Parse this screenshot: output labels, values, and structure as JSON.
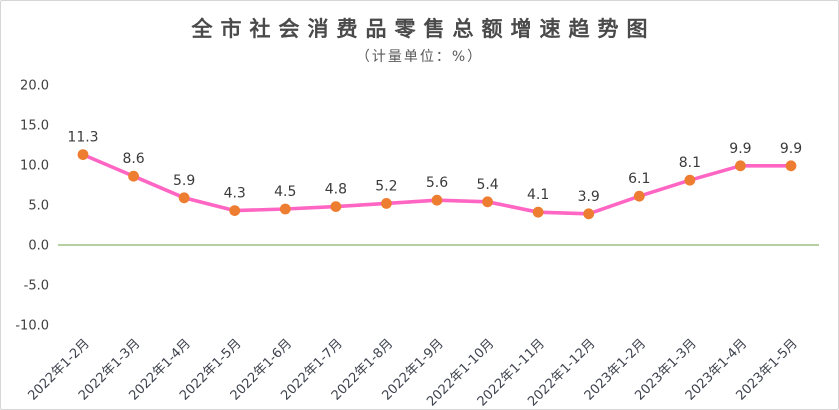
{
  "chart_data": {
    "type": "line",
    "title": "全市社会消费品零售总额增速趋势图",
    "subtitle": "（计量单位：%）",
    "categories": [
      "2022年1-2月",
      "2022年1-3月",
      "2022年1-4月",
      "2022年1-5月",
      "2022年1-6月",
      "2022年1-7月",
      "2022年1-8月",
      "2022年1-9月",
      "2022年1-10月",
      "2022年1-11月",
      "2022年1-12月",
      "2023年1-2月",
      "2023年1-3月",
      "2023年1-4月",
      "2023年1-5月"
    ],
    "values": [
      11.3,
      8.6,
      5.9,
      4.3,
      4.5,
      4.8,
      5.2,
      5.6,
      5.4,
      4.1,
      3.9,
      6.1,
      8.1,
      9.9,
      9.9
    ],
    "data_labels": [
      "11.3",
      "8.6",
      "5.9",
      "4.3",
      "4.5",
      "4.8",
      "5.2",
      "5.6",
      "5.4",
      "4.1",
      "3.9",
      "6.1",
      "8.1",
      "9.9",
      "9.9"
    ],
    "ytick_labels": [
      "20.0",
      "15.0",
      "10.0",
      "5.0",
      "0.0",
      "-5.0",
      "-10.0"
    ],
    "yticks": [
      20,
      15,
      10,
      5,
      0,
      -5,
      -10
    ],
    "ylim": [
      -10,
      20
    ],
    "xlabel": "",
    "ylabel": "",
    "grid": false,
    "zero_line": true,
    "legend": "none",
    "colors": {
      "line": "#ff66c4",
      "marker": "#ed7d31",
      "zero_line": "#9dc183",
      "data_label": "#3b3b3b",
      "y_axis_text": "#404040",
      "x_axis_text": "#3d424d",
      "title": "#4a4a4a",
      "subtitle": "#595959",
      "frame_border": "#d6d6d6"
    }
  }
}
